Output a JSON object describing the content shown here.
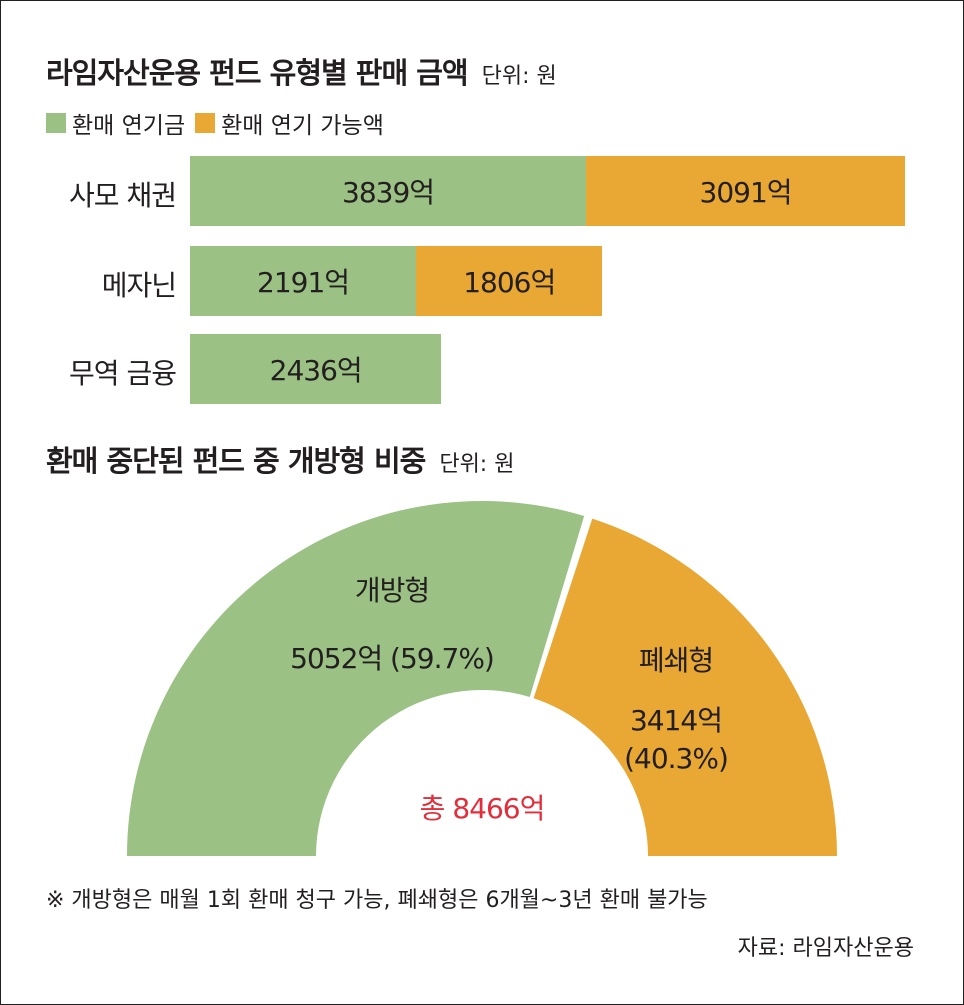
{
  "colors": {
    "green": "#9bc184",
    "orange": "#e8a833",
    "total_red": "#e32d3b",
    "text": "#231f20"
  },
  "section1": {
    "title": "라임자산운용 펀드 유형별 판매 금액",
    "unit": "단위: 원",
    "legend": [
      {
        "label": "환매 연기금",
        "color": "#9bc184"
      },
      {
        "label": "환매 연기 가능액",
        "color": "#e8a833"
      }
    ]
  },
  "section2": {
    "title": "환매 중단된 펀드 중 개방형 비중",
    "unit": "단위: 원",
    "total_label": "총 8466억",
    "slices": [
      {
        "name": "개방형",
        "value_label": "5052억 (59.7%)"
      },
      {
        "name": "폐쇄형",
        "value_label": "3414억",
        "percent_label": "(40.3%)"
      }
    ]
  },
  "footnote": "※ 개방형은 매월 1회 환매 청구 가능, 폐쇄형은 6개월~3년 환매 불가능",
  "source": "자료: 라임자산운용",
  "chart_data": [
    {
      "type": "bar",
      "orientation": "horizontal",
      "stacked": true,
      "title": "라임자산운용 펀드 유형별 판매 금액",
      "unit": "단위: 원",
      "categories": [
        "사모 채권",
        "메자닌",
        "무역 금융"
      ],
      "series": [
        {
          "name": "환매 연기금",
          "values": [
            3839,
            2191,
            2436
          ],
          "labels": [
            "3839억",
            "2191억",
            "2436억"
          ],
          "color": "#9bc184"
        },
        {
          "name": "환매 연기 가능액",
          "values": [
            3091,
            1806,
            0
          ],
          "labels": [
            "3091억",
            "1806억",
            ""
          ],
          "color": "#e8a833"
        }
      ],
      "legend": "top-left",
      "grid": false
    },
    {
      "type": "pie",
      "variant": "half-donut",
      "title": "환매 중단된 펀드 중 개방형 비중",
      "unit": "단위: 원",
      "categories": [
        "개방형",
        "폐쇄형"
      ],
      "values": [
        5052,
        3414
      ],
      "percentages": [
        59.7,
        40.3
      ],
      "colors": [
        "#9bc184",
        "#e8a833"
      ],
      "total": 8466
    }
  ]
}
